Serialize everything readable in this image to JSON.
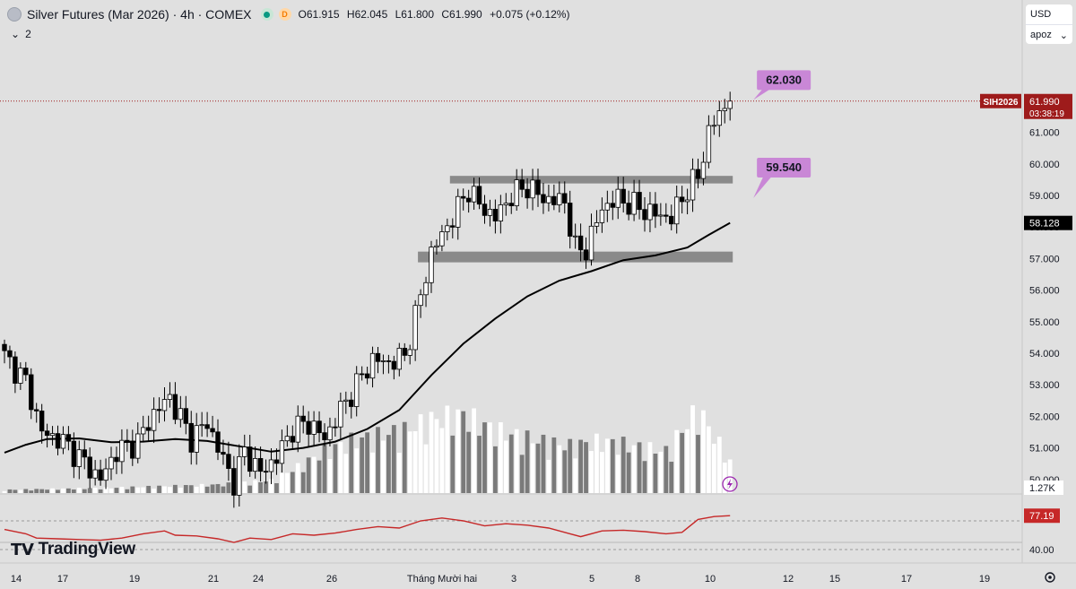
{
  "header": {
    "title": "Silver Futures (Mar 2026) · 4h · COMEX",
    "status_badge": "D",
    "ohlc": {
      "open": "O61.915",
      "high": "H62.045",
      "low": "L61.800",
      "close": "C61.990",
      "change": "+0.075 (+0.12%)"
    },
    "indicator_count": "2"
  },
  "controls": {
    "currency": "USD",
    "unit": "apoz"
  },
  "branding": {
    "logo_text": "TradingView"
  },
  "colors": {
    "bull": "#ffffff",
    "bear": "#000000",
    "ma": "#000000",
    "rsi": "#c62828",
    "price_tag": "#9e1b1b",
    "annotation": "#c987d6"
  },
  "chart_data": {
    "type": "candlestick",
    "symbol_tag": "SIH2026",
    "current_price": "61.990",
    "countdown": "03:38:19",
    "ma_label": "58.128",
    "volume_label": "1.27K",
    "rsi_label": "77.19",
    "rsi_level_label": "40.00",
    "price_axis": {
      "min": 49.2,
      "max": 62.6,
      "ticks": [
        "61.000",
        "60.000",
        "59.000",
        "58.000",
        "57.000",
        "56.000",
        "55.000",
        "54.000",
        "53.000",
        "52.000",
        "51.000",
        "50.000"
      ]
    },
    "time_axis": [
      "14",
      "17",
      "19",
      "21",
      "24",
      "26",
      "Tháng Mười hai",
      "3",
      "5",
      "8",
      "10",
      "12",
      "15",
      "17",
      "19"
    ],
    "annotations": [
      {
        "text": "62.030",
        "price": 62.03,
        "bar": 137
      },
      {
        "text": "59.540",
        "price": 59.54,
        "bar": 137
      }
    ],
    "zones": [
      {
        "top": 59.62,
        "bottom": 59.38,
        "bar_from": 84,
        "bar_to": 136
      },
      {
        "top": 57.22,
        "bottom": 56.88,
        "bar_from": 78,
        "bar_to": 136
      }
    ],
    "bars": 137,
    "key_closes": [
      {
        "bar": 0,
        "close": 53.9
      },
      {
        "bar": 4,
        "close": 53.1
      },
      {
        "bar": 7,
        "close": 51.5
      },
      {
        "bar": 11,
        "close": 51.2
      },
      {
        "bar": 14,
        "close": 50.7
      },
      {
        "bar": 18,
        "close": 50.0
      },
      {
        "bar": 21,
        "close": 50.9
      },
      {
        "bar": 25,
        "close": 51.2
      },
      {
        "bar": 28,
        "close": 52.1
      },
      {
        "bar": 31,
        "close": 52.6
      },
      {
        "bar": 35,
        "close": 51.3
      },
      {
        "bar": 38,
        "close": 51.8
      },
      {
        "bar": 40,
        "close": 51.0
      },
      {
        "bar": 43,
        "close": 49.9
      },
      {
        "bar": 45,
        "close": 50.9
      },
      {
        "bar": 48,
        "close": 50.2
      },
      {
        "bar": 51,
        "close": 50.7
      },
      {
        "bar": 54,
        "close": 51.6
      },
      {
        "bar": 57,
        "close": 51.8
      },
      {
        "bar": 60,
        "close": 51.3
      },
      {
        "bar": 63,
        "close": 52.2
      },
      {
        "bar": 66,
        "close": 53.0
      },
      {
        "bar": 69,
        "close": 53.8
      },
      {
        "bar": 72,
        "close": 53.7
      },
      {
        "bar": 75,
        "close": 53.9
      },
      {
        "bar": 78,
        "close": 55.8
      },
      {
        "bar": 80,
        "close": 57.2
      },
      {
        "bar": 84,
        "close": 58.3
      },
      {
        "bar": 87,
        "close": 59.2
      },
      {
        "bar": 89,
        "close": 58.7
      },
      {
        "bar": 92,
        "close": 58.3
      },
      {
        "bar": 95,
        "close": 59.0
      },
      {
        "bar": 98,
        "close": 59.3
      },
      {
        "bar": 101,
        "close": 58.9
      },
      {
        "bar": 105,
        "close": 58.8
      },
      {
        "bar": 107,
        "close": 57.3
      },
      {
        "bar": 109,
        "close": 57.3
      },
      {
        "bar": 112,
        "close": 58.6
      },
      {
        "bar": 115,
        "close": 58.9
      },
      {
        "bar": 119,
        "close": 58.6
      },
      {
        "bar": 122,
        "close": 58.4
      },
      {
        "bar": 125,
        "close": 58.3
      },
      {
        "bar": 128,
        "close": 59.2
      },
      {
        "bar": 130,
        "close": 59.6
      },
      {
        "bar": 132,
        "close": 61.0
      },
      {
        "bar": 134,
        "close": 61.6
      },
      {
        "bar": 136,
        "close": 61.99
      }
    ],
    "ma": [
      {
        "bar": 0,
        "v": 50.85
      },
      {
        "bar": 4,
        "v": 51.1
      },
      {
        "bar": 8,
        "v": 51.28
      },
      {
        "bar": 14,
        "v": 51.3
      },
      {
        "bar": 20,
        "v": 51.18
      },
      {
        "bar": 26,
        "v": 51.2
      },
      {
        "bar": 32,
        "v": 51.28
      },
      {
        "bar": 38,
        "v": 51.22
      },
      {
        "bar": 44,
        "v": 51.05
      },
      {
        "bar": 50,
        "v": 50.88
      },
      {
        "bar": 56,
        "v": 51.0
      },
      {
        "bar": 62,
        "v": 51.2
      },
      {
        "bar": 68,
        "v": 51.6
      },
      {
        "bar": 74,
        "v": 52.2
      },
      {
        "bar": 80,
        "v": 53.3
      },
      {
        "bar": 86,
        "v": 54.3
      },
      {
        "bar": 92,
        "v": 55.1
      },
      {
        "bar": 98,
        "v": 55.8
      },
      {
        "bar": 104,
        "v": 56.3
      },
      {
        "bar": 110,
        "v": 56.6
      },
      {
        "bar": 116,
        "v": 56.95
      },
      {
        "bar": 122,
        "v": 57.1
      },
      {
        "bar": 128,
        "v": 57.35
      },
      {
        "bar": 132,
        "v": 57.75
      },
      {
        "bar": 136,
        "v": 58.13
      }
    ],
    "rsi": [
      {
        "bar": 0,
        "v": 58
      },
      {
        "bar": 4,
        "v": 52
      },
      {
        "bar": 6,
        "v": 46
      },
      {
        "bar": 10,
        "v": 45
      },
      {
        "bar": 14,
        "v": 44
      },
      {
        "bar": 18,
        "v": 43
      },
      {
        "bar": 22,
        "v": 46
      },
      {
        "bar": 26,
        "v": 52
      },
      {
        "bar": 30,
        "v": 56
      },
      {
        "bar": 32,
        "v": 50
      },
      {
        "bar": 36,
        "v": 49
      },
      {
        "bar": 40,
        "v": 45
      },
      {
        "bar": 43,
        "v": 40
      },
      {
        "bar": 46,
        "v": 46
      },
      {
        "bar": 50,
        "v": 44
      },
      {
        "bar": 54,
        "v": 52
      },
      {
        "bar": 58,
        "v": 50
      },
      {
        "bar": 62,
        "v": 53
      },
      {
        "bar": 66,
        "v": 58
      },
      {
        "bar": 70,
        "v": 62
      },
      {
        "bar": 74,
        "v": 60
      },
      {
        "bar": 78,
        "v": 70
      },
      {
        "bar": 82,
        "v": 74
      },
      {
        "bar": 86,
        "v": 70
      },
      {
        "bar": 90,
        "v": 63
      },
      {
        "bar": 94,
        "v": 66
      },
      {
        "bar": 98,
        "v": 64
      },
      {
        "bar": 102,
        "v": 60
      },
      {
        "bar": 106,
        "v": 52
      },
      {
        "bar": 108,
        "v": 48
      },
      {
        "bar": 112,
        "v": 56
      },
      {
        "bar": 116,
        "v": 57
      },
      {
        "bar": 120,
        "v": 55
      },
      {
        "bar": 124,
        "v": 52
      },
      {
        "bar": 127,
        "v": 54
      },
      {
        "bar": 130,
        "v": 72
      },
      {
        "bar": 133,
        "v": 76
      },
      {
        "bar": 136,
        "v": 77.19
      }
    ],
    "volume_profile": [
      {
        "bar": 0,
        "v": 0.03
      },
      {
        "bar": 20,
        "v": 0.05
      },
      {
        "bar": 40,
        "v": 0.08
      },
      {
        "bar": 50,
        "v": 0.12
      },
      {
        "bar": 55,
        "v": 0.25
      },
      {
        "bar": 60,
        "v": 0.4
      },
      {
        "bar": 65,
        "v": 0.5
      },
      {
        "bar": 70,
        "v": 0.55
      },
      {
        "bar": 75,
        "v": 0.6
      },
      {
        "bar": 80,
        "v": 0.7
      },
      {
        "bar": 86,
        "v": 0.75
      },
      {
        "bar": 92,
        "v": 0.6
      },
      {
        "bar": 100,
        "v": 0.5
      },
      {
        "bar": 106,
        "v": 0.45
      },
      {
        "bar": 112,
        "v": 0.5
      },
      {
        "bar": 118,
        "v": 0.45
      },
      {
        "bar": 124,
        "v": 0.4
      },
      {
        "bar": 130,
        "v": 0.8
      },
      {
        "bar": 136,
        "v": 0.3
      }
    ]
  }
}
